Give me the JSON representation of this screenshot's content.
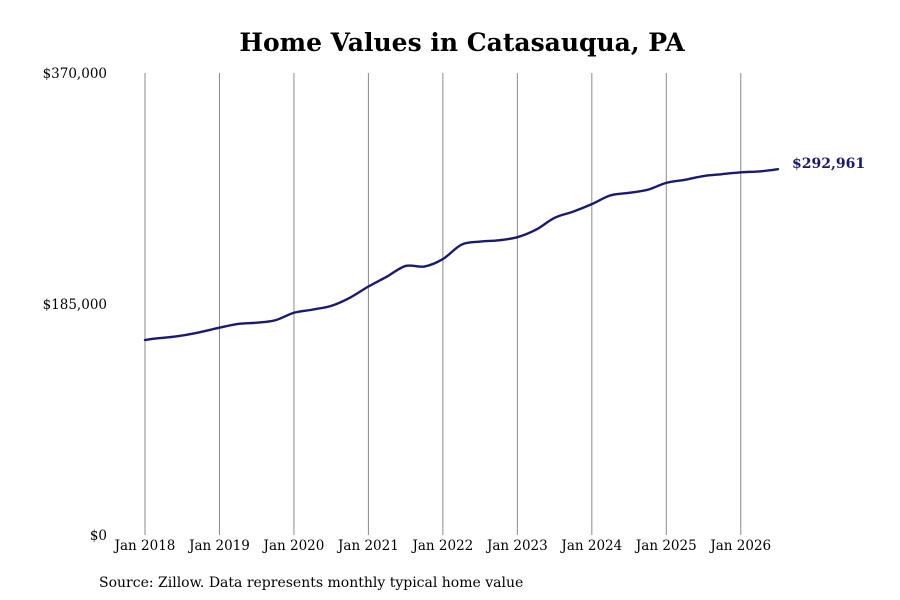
{
  "chart_data": {
    "type": "line",
    "title": "Home Values in Catasauqua, PA",
    "xlabel": "",
    "ylabel": "",
    "ylim": [
      0,
      370000
    ],
    "xlim": [
      "2018-01",
      "2026-07"
    ],
    "y_ticks": [
      "$0",
      "$185,000",
      "$370,000"
    ],
    "y_tick_values": [
      0,
      185000,
      370000
    ],
    "x_ticks": [
      "Jan 2018",
      "Jan 2019",
      "Jan 2020",
      "Jan 2021",
      "Jan 2022",
      "Jan 2023",
      "Jan 2024",
      "Jan 2025",
      "Jan 2026"
    ],
    "x_tick_values": [
      "2018-01",
      "2019-01",
      "2020-01",
      "2021-01",
      "2022-01",
      "2023-01",
      "2024-01",
      "2025-01",
      "2026-01"
    ],
    "grid": "vertical",
    "line_color": "#1a1a6e",
    "end_label": "$292,961",
    "series": [
      {
        "x": [
          "2018-01",
          "2018-03",
          "2018-06",
          "2018-09",
          "2019-01",
          "2019-04",
          "2019-07",
          "2019-10",
          "2020-01",
          "2020-04",
          "2020-07",
          "2020-10",
          "2021-01",
          "2021-04",
          "2021-07",
          "2021-10",
          "2022-01",
          "2022-04",
          "2022-07",
          "2022-10",
          "2023-01",
          "2023-04",
          "2023-07",
          "2023-10",
          "2024-01",
          "2024-04",
          "2024-07",
          "2024-10",
          "2025-01",
          "2025-04",
          "2025-07",
          "2025-10",
          "2026-01",
          "2026-04",
          "2026-07"
        ],
        "values": [
          156200,
          157500,
          159000,
          161500,
          166000,
          169000,
          170000,
          172000,
          178000,
          180500,
          183500,
          190000,
          199000,
          207000,
          215500,
          215000,
          221000,
          232500,
          235000,
          236000,
          238500,
          244500,
          254000,
          259000,
          265000,
          272000,
          274000,
          276500,
          282000,
          284500,
          287500,
          289000,
          290500,
          291200,
          292961
        ]
      }
    ]
  },
  "footer": {
    "source": "Source: Zillow. Data represents monthly typical home value"
  }
}
